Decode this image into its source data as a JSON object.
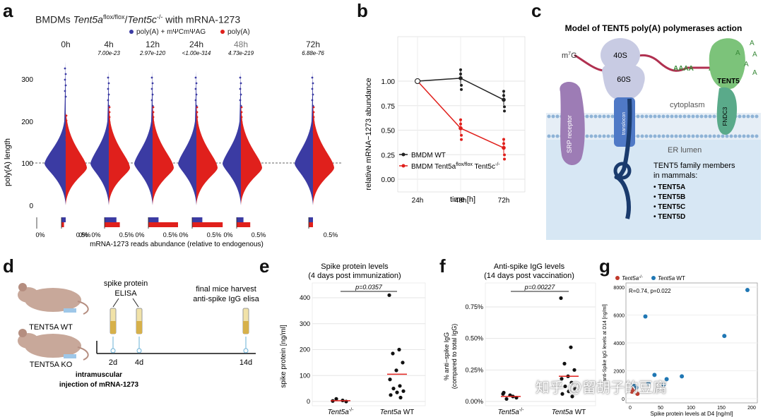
{
  "panel_letters": {
    "a": "a",
    "b": "b",
    "c": "c",
    "d": "d",
    "e": "e",
    "f": "f",
    "g": "g"
  },
  "panel_a": {
    "title_prefix": "BMDMs ",
    "title_gene1": "Tent5a",
    "title_sup1": "flox/flox",
    "title_slash": "/",
    "title_gene2": "Tent5c",
    "title_sup2": "-/-",
    "title_suffix": " with mRNA-1273",
    "legend": [
      {
        "label": "poly(A) + mΨCmΨAG",
        "color": "#3b3ba3"
      },
      {
        "label": "poly(A)",
        "color": "#e0201c"
      }
    ],
    "ylabel": "poly(A) length",
    "yticks": [
      "300",
      "200",
      "100",
      "0"
    ],
    "xlabel": "mRNA-1273 reads abundance (relative to endogenous)",
    "timepoints": [
      {
        "label": "0h",
        "pval": ""
      },
      {
        "label": "4h",
        "pval": "7.00e-23"
      },
      {
        "label": "12h",
        "pval": "2.97e-120"
      },
      {
        "label": "24h",
        "pval": "<1.00e-314"
      },
      {
        "label": "48h",
        "pval": "4.73e-219"
      },
      {
        "label": "72h",
        "pval": "6.88e-76"
      }
    ],
    "bar_ticks": [
      "0%",
      "0.5%"
    ],
    "abundance": [
      {
        "blue": 0.05,
        "red": 0.03
      },
      {
        "blue": 0.14,
        "red": 0.18
      },
      {
        "blue": 0.12,
        "red": 0.35
      },
      {
        "blue": 0.12,
        "red": 0.36
      },
      {
        "blue": 0.08,
        "red": 0.16
      },
      {
        "blue": 0.05,
        "red": 0.05
      }
    ]
  },
  "panel_b": {
    "ylabel": "relative mRNA−1273 abundance",
    "xlabel": "time [h]",
    "yticks": [
      "1.00",
      "0.75",
      "0.50",
      "0.25",
      "0.00"
    ],
    "legend_wt": "BMDM WT",
    "legend_ko_prefix": "BMDM Tent5a",
    "legend_ko_sup": "flox/flox",
    "legend_ko_suffix": " Tent5c",
    "legend_ko_sup2": "-/-"
  },
  "chart_data": [
    {
      "type": "line",
      "x": [
        "24h",
        "48h",
        "72h"
      ],
      "xlabel": "time [h]",
      "ylabel": "relative mRNA−1273 abundance",
      "ylim": [
        0,
        1.15
      ],
      "series": [
        {
          "name": "BMDM WT",
          "values": [
            1.0,
            1.03,
            0.81
          ],
          "color": "#222222"
        },
        {
          "name": "BMDM Tent5aflox/flox Tent5c-/-",
          "values": [
            1.0,
            0.52,
            0.32
          ],
          "color": "#e0201c"
        }
      ]
    },
    {
      "type": "scatter",
      "title": "Spike protein levels\n(4 days post immunization)",
      "categories": [
        "Tent5a-/-",
        "Tent5a WT"
      ],
      "ylabel": "spike protein [ng/ml]",
      "ylim": [
        0,
        430
      ],
      "series": [
        {
          "name": "Tent5a-/-",
          "values": [
            2,
            4,
            10,
            0
          ],
          "median": 3
        },
        {
          "name": "Tent5a WT",
          "values": [
            410,
            200,
            185,
            150,
            120,
            85,
            60,
            50,
            40,
            35,
            25,
            15
          ],
          "median": 105
        }
      ]
    },
    {
      "type": "scatter",
      "title": "Anti-spike IgG levels\n(14 days post vaccination)",
      "categories": [
        "Tent5a-/-",
        "Tent5a WT"
      ],
      "ylabel": "% anti-spike IgG (compared to total IgG)",
      "ylim": [
        0,
        0.85
      ],
      "series": [
        {
          "name": "Tent5a-/-",
          "values": [
            0.06,
            0.04,
            0.02,
            0.03,
            0.05,
            0.07
          ],
          "median": 0.04
        },
        {
          "name": "Tent5a WT",
          "values": [
            0.82,
            0.43,
            0.3,
            0.25,
            0.2,
            0.18,
            0.15,
            0.12,
            0.1,
            0.08,
            0.06,
            0.04
          ],
          "median": 0.2
        }
      ]
    },
    {
      "type": "scatter",
      "xlabel": "Spike protein levels at D4 [ng/ml]",
      "ylabel": "anti-Spike IgG levels at D14 [ng/ml]",
      "xlim": [
        0,
        200
      ],
      "ylim": [
        0,
        8000
      ],
      "series": [
        {
          "name": "Tent5a-/-",
          "color": "#c0392b",
          "points": [
            [
              3,
              500
            ],
            [
              6,
              700
            ],
            [
              12,
              350
            ]
          ]
        },
        {
          "name": "Tent5a WT",
          "color": "#1f77b4",
          "points": [
            [
              193,
              7800
            ],
            [
              25,
              5900
            ],
            [
              155,
              4500
            ],
            [
              40,
              1700
            ],
            [
              85,
              1600
            ],
            [
              55,
              1000
            ],
            [
              30,
              1100
            ],
            [
              60,
              1400
            ],
            [
              10,
              800
            ],
            [
              5,
              1000
            ]
          ]
        }
      ]
    }
  ],
  "panel_c": {
    "title": "Model of TENT5 poly(A) polymerases action",
    "m7g": "m",
    "m7g_sup": "7",
    "m7g_tail": "G",
    "ribo40": "40S",
    "ribo60": "60S",
    "aaaa": "AAAA",
    "a_single": "A",
    "a_letters": [
      "A",
      "A",
      "A",
      "A",
      "A"
    ],
    "tent5": "TENT5",
    "fndc3": "FNDC3",
    "cytoplasm": "cytoplasm",
    "er_lumen": "ER lumen",
    "srp": "SRP receptor",
    "translocon": "translocon",
    "family_title": "TENT5 family members\nin mammals:",
    "members": [
      "TENT5A",
      "TENT5B",
      "TENT5C",
      "TENT5D"
    ]
  },
  "panel_d": {
    "wt": "TENT5A WT",
    "ko": "TENT5A KO",
    "elisa1": "spike protein",
    "elisa2": "ELISA",
    "harvest1": "final mice harvest",
    "harvest2": "anti-spike IgG elisa",
    "days": [
      "2d",
      "4d",
      "14d"
    ],
    "injection1": "intramuscular",
    "injection2": "injection of mRNA-1273"
  },
  "panel_e": {
    "title1": "Spike protein levels",
    "title2": "(4 days post immunization)",
    "pval": "p=0.0357",
    "ylabel": "spike protein [ng/ml]",
    "yticks": [
      "400",
      "300",
      "200",
      "100",
      "0"
    ],
    "x1": "Tent5a",
    "x1_sup": "-/-",
    "x2_gene": "Tent5a",
    "x2_rest": " WT"
  },
  "panel_f": {
    "title1": "Anti-spike IgG levels",
    "title2": "(14 days post vaccination)",
    "pval": "p=0.00227",
    "ylabel1": "% anti−spike IgG",
    "ylabel2": "(compared to total IgG)",
    "yticks": [
      "0.75%",
      "0.50%",
      "0.25%",
      "0.00%"
    ],
    "x1": "Tent5a",
    "x1_sup": "-/-",
    "x2_gene": "Tent5a",
    "x2_rest": " WT"
  },
  "panel_g": {
    "legend_ko": "Tent5a",
    "legend_ko_sup": "-/-",
    "legend_wt_gene": "Tent5a",
    "legend_wt_rest": " WT",
    "stat": "R=0.74, p=0.022",
    "ylabel": "anti-Spike IgG levels at D14 [ng/ml]",
    "xlabel": "Spike protein levels at D4 [ng/ml]",
    "yticks": [
      "8000",
      "6000",
      "4000",
      "2000",
      "0"
    ],
    "xticks": [
      "0",
      "50",
      "100",
      "150",
      "200"
    ]
  },
  "watermark": "知乎 @留胡子的豆腐"
}
